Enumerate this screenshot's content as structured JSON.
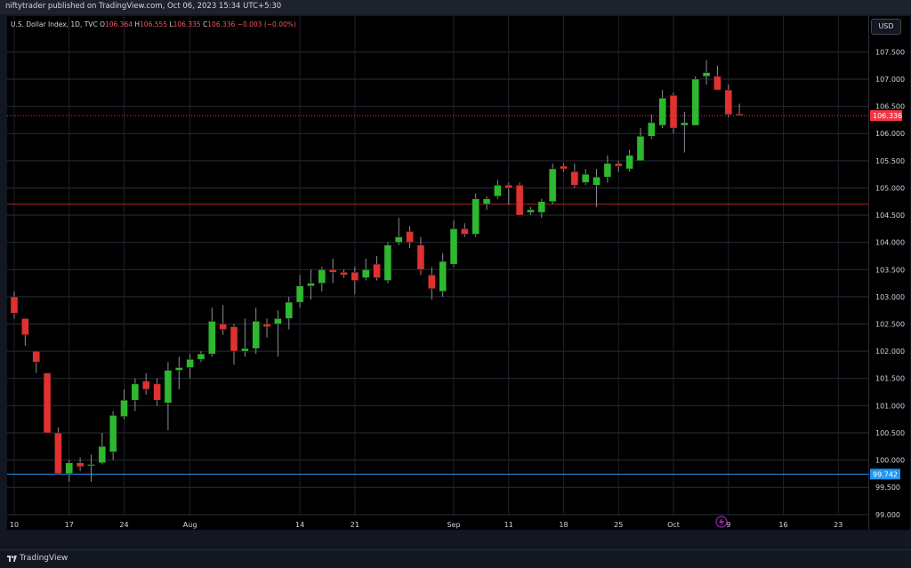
{
  "header": {
    "published_text": "niftytrader published on TradingView.com, Oct 06, 2023 15:34 UTC+5:30"
  },
  "symbol": {
    "name": "U.S. Dollar Index, 1D, TVC",
    "open_label": "O",
    "open": "106.364",
    "high_label": "H",
    "high": "106.555",
    "low_label": "L",
    "low": "106.335",
    "close_label": "C",
    "close": "106.336",
    "change": "−0.003 (−0.00%)"
  },
  "currency_button": "USD",
  "footer": {
    "brand": "TradingView"
  },
  "colors": {
    "up": "#26a69a",
    "up_fill": "#2eb82e",
    "down": "#ef3b3b",
    "last_price_label": "#f23645",
    "hline_price_label": "#2196f3"
  },
  "chart_data": {
    "type": "candlestick",
    "title": "U.S. Dollar Index, 1D, TVC",
    "ylim": [
      98.85,
      107.8
    ],
    "y_ticks": [
      "99.000",
      "99.500",
      "100.000",
      "100.500",
      "101.000",
      "101.500",
      "102.000",
      "102.500",
      "103.000",
      "103.500",
      "104.000",
      "104.500",
      "105.000",
      "105.500",
      "106.000",
      "106.500",
      "107.000",
      "107.500"
    ],
    "x_ticks": [
      "10",
      "17",
      "24",
      "Aug",
      "14",
      "21",
      "Sep",
      "11",
      "18",
      "25",
      "Oct",
      "9",
      "16",
      "23"
    ],
    "x_tick_index": [
      0,
      5,
      10,
      16,
      26,
      31,
      40,
      45,
      50,
      55,
      60,
      65,
      70,
      75
    ],
    "x_slots": 78,
    "last_price_label": "106.336",
    "horizontal_lines": [
      {
        "price": 99.742,
        "color": "#2196f3",
        "label": "99.742"
      },
      {
        "price": 104.7,
        "color": "#b22222"
      }
    ],
    "candles": [
      {
        "o": 103.0,
        "h": 103.1,
        "l": 102.6,
        "c": 102.7
      },
      {
        "o": 102.6,
        "h": 102.6,
        "l": 102.1,
        "c": 102.3
      },
      {
        "o": 102.0,
        "h": 102.0,
        "l": 101.6,
        "c": 101.8
      },
      {
        "o": 101.6,
        "h": 101.6,
        "l": 100.5,
        "c": 100.5
      },
      {
        "o": 100.5,
        "h": 100.6,
        "l": 99.75,
        "c": 99.75
      },
      {
        "o": 99.75,
        "h": 100.0,
        "l": 99.6,
        "c": 99.95
      },
      {
        "o": 99.95,
        "h": 100.05,
        "l": 99.8,
        "c": 99.88
      },
      {
        "o": 99.9,
        "h": 100.1,
        "l": 99.6,
        "c": 99.92
      },
      {
        "o": 99.95,
        "h": 100.5,
        "l": 99.92,
        "c": 100.25
      },
      {
        "o": 100.15,
        "h": 100.9,
        "l": 100.0,
        "c": 100.82
      },
      {
        "o": 100.8,
        "h": 101.3,
        "l": 100.75,
        "c": 101.1
      },
      {
        "o": 101.1,
        "h": 101.5,
        "l": 100.9,
        "c": 101.4
      },
      {
        "o": 101.45,
        "h": 101.6,
        "l": 101.2,
        "c": 101.3
      },
      {
        "o": 101.4,
        "h": 101.5,
        "l": 101.0,
        "c": 101.1
      },
      {
        "o": 101.05,
        "h": 101.8,
        "l": 100.55,
        "c": 101.65
      },
      {
        "o": 101.65,
        "h": 101.9,
        "l": 101.3,
        "c": 101.7
      },
      {
        "o": 101.7,
        "h": 101.95,
        "l": 101.5,
        "c": 101.85
      },
      {
        "o": 101.85,
        "h": 102.0,
        "l": 101.8,
        "c": 101.95
      },
      {
        "o": 101.95,
        "h": 102.8,
        "l": 101.9,
        "c": 102.55
      },
      {
        "o": 102.5,
        "h": 102.85,
        "l": 102.3,
        "c": 102.4
      },
      {
        "o": 102.45,
        "h": 102.5,
        "l": 101.75,
        "c": 102.0
      },
      {
        "o": 102.0,
        "h": 102.6,
        "l": 101.9,
        "c": 102.05
      },
      {
        "o": 102.05,
        "h": 102.8,
        "l": 101.95,
        "c": 102.55
      },
      {
        "o": 102.5,
        "h": 102.6,
        "l": 102.25,
        "c": 102.45
      },
      {
        "o": 102.5,
        "h": 102.75,
        "l": 101.9,
        "c": 102.6
      },
      {
        "o": 102.6,
        "h": 103.0,
        "l": 102.4,
        "c": 102.9
      },
      {
        "o": 102.9,
        "h": 103.4,
        "l": 102.8,
        "c": 103.2
      },
      {
        "o": 103.2,
        "h": 103.5,
        "l": 102.95,
        "c": 103.25
      },
      {
        "o": 103.25,
        "h": 103.55,
        "l": 103.1,
        "c": 103.5
      },
      {
        "o": 103.5,
        "h": 103.7,
        "l": 103.25,
        "c": 103.45
      },
      {
        "o": 103.45,
        "h": 103.5,
        "l": 103.35,
        "c": 103.4
      },
      {
        "o": 103.45,
        "h": 103.55,
        "l": 103.05,
        "c": 103.3
      },
      {
        "o": 103.35,
        "h": 103.7,
        "l": 103.3,
        "c": 103.5
      },
      {
        "o": 103.6,
        "h": 103.75,
        "l": 103.3,
        "c": 103.35
      },
      {
        "o": 103.3,
        "h": 104.0,
        "l": 103.25,
        "c": 103.95
      },
      {
        "o": 104.0,
        "h": 104.45,
        "l": 103.95,
        "c": 104.1
      },
      {
        "o": 104.2,
        "h": 104.3,
        "l": 103.9,
        "c": 104.0
      },
      {
        "o": 103.95,
        "h": 104.1,
        "l": 103.4,
        "c": 103.5
      },
      {
        "o": 103.4,
        "h": 103.55,
        "l": 102.95,
        "c": 103.15
      },
      {
        "o": 103.1,
        "h": 103.8,
        "l": 103.0,
        "c": 103.65
      },
      {
        "o": 103.6,
        "h": 104.4,
        "l": 103.55,
        "c": 104.25
      },
      {
        "o": 104.25,
        "h": 104.35,
        "l": 104.1,
        "c": 104.15
      },
      {
        "o": 104.15,
        "h": 104.9,
        "l": 104.1,
        "c": 104.8
      },
      {
        "o": 104.7,
        "h": 104.85,
        "l": 104.6,
        "c": 104.8
      },
      {
        "o": 104.85,
        "h": 105.15,
        "l": 104.8,
        "c": 105.05
      },
      {
        "o": 105.05,
        "h": 105.1,
        "l": 104.7,
        "c": 105.0
      },
      {
        "o": 105.05,
        "h": 105.1,
        "l": 104.5,
        "c": 104.5
      },
      {
        "o": 104.55,
        "h": 104.65,
        "l": 104.5,
        "c": 104.6
      },
      {
        "o": 104.55,
        "h": 104.8,
        "l": 104.45,
        "c": 104.75
      },
      {
        "o": 104.75,
        "h": 105.45,
        "l": 104.7,
        "c": 105.35
      },
      {
        "o": 105.4,
        "h": 105.45,
        "l": 105.3,
        "c": 105.35
      },
      {
        "o": 105.3,
        "h": 105.45,
        "l": 105.0,
        "c": 105.05
      },
      {
        "o": 105.1,
        "h": 105.35,
        "l": 105.05,
        "c": 105.25
      },
      {
        "o": 105.05,
        "h": 105.35,
        "l": 104.65,
        "c": 105.2
      },
      {
        "o": 105.2,
        "h": 105.6,
        "l": 105.1,
        "c": 105.45
      },
      {
        "o": 105.45,
        "h": 105.5,
        "l": 105.3,
        "c": 105.4
      },
      {
        "o": 105.35,
        "h": 105.7,
        "l": 105.3,
        "c": 105.6
      },
      {
        "o": 105.5,
        "h": 106.1,
        "l": 105.5,
        "c": 105.95
      },
      {
        "o": 105.95,
        "h": 106.35,
        "l": 105.9,
        "c": 106.2
      },
      {
        "o": 106.15,
        "h": 106.8,
        "l": 106.1,
        "c": 106.65
      },
      {
        "o": 106.7,
        "h": 106.75,
        "l": 106.0,
        "c": 106.1
      },
      {
        "o": 106.15,
        "h": 106.4,
        "l": 105.65,
        "c": 106.2
      },
      {
        "o": 106.15,
        "h": 107.05,
        "l": 106.15,
        "c": 107.0
      },
      {
        "o": 107.05,
        "h": 107.35,
        "l": 106.9,
        "c": 107.12
      },
      {
        "o": 107.05,
        "h": 107.25,
        "l": 106.85,
        "c": 106.8
      },
      {
        "o": 106.8,
        "h": 106.9,
        "l": 106.3,
        "c": 106.35
      },
      {
        "o": 106.36,
        "h": 106.55,
        "l": 106.33,
        "c": 106.33
      }
    ]
  }
}
